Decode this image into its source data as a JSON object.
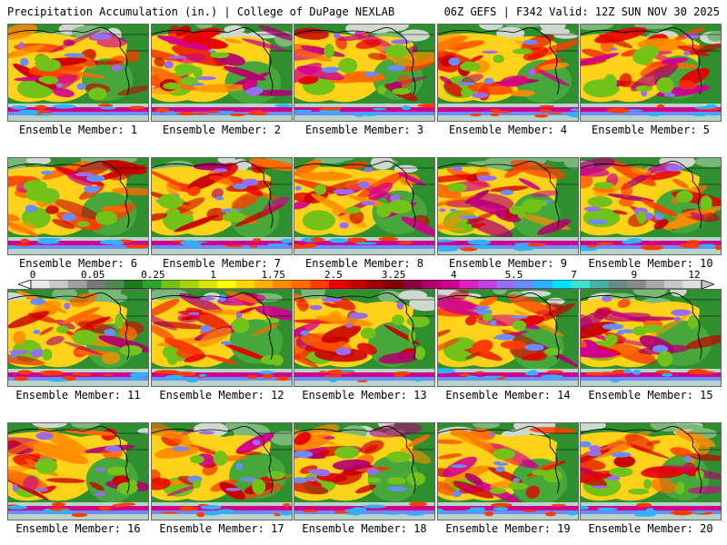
{
  "header": {
    "title": "Precipitation Accumulation (in.) | College of DuPage NEXLAB",
    "run_info": "06Z GEFS | F342 Valid: 12Z SUN NOV 30 2025"
  },
  "members": [
    {
      "label": "Ensemble Member: 1"
    },
    {
      "label": "Ensemble Member: 2"
    },
    {
      "label": "Ensemble Member: 3"
    },
    {
      "label": "Ensemble Member: 4"
    },
    {
      "label": "Ensemble Member: 5"
    },
    {
      "label": "Ensemble Member: 6"
    },
    {
      "label": "Ensemble Member: 7"
    },
    {
      "label": "Ensemble Member: 8"
    },
    {
      "label": "Ensemble Member: 9"
    },
    {
      "label": "Ensemble Member: 10"
    },
    {
      "label": "Ensemble Member: 11"
    },
    {
      "label": "Ensemble Member: 12"
    },
    {
      "label": "Ensemble Member: 13"
    },
    {
      "label": "Ensemble Member: 14"
    },
    {
      "label": "Ensemble Member: 15"
    },
    {
      "label": "Ensemble Member: 16"
    },
    {
      "label": "Ensemble Member: 17"
    },
    {
      "label": "Ensemble Member: 18"
    },
    {
      "label": "Ensemble Member: 19"
    },
    {
      "label": "Ensemble Member: 20"
    }
  ],
  "colorbar": {
    "tick_labels": [
      "0",
      "0.05",
      "0.25",
      "1",
      "1.75",
      "2.5",
      "3.25",
      "4",
      "5.5",
      "7",
      "9",
      "12"
    ],
    "colors": [
      "#e8e8e8",
      "#c8c8c8",
      "#a0a0a0",
      "#787878",
      "#4f8a4f",
      "#1f7a1f",
      "#2ea12e",
      "#72c21a",
      "#a8d40f",
      "#d8e60a",
      "#ffff00",
      "#ffd700",
      "#ffb000",
      "#ff8c00",
      "#ff6a00",
      "#ff3c00",
      "#e60000",
      "#c80000",
      "#a00000",
      "#800000",
      "#8b0040",
      "#b00070",
      "#d0008f",
      "#e020c0",
      "#c040e0",
      "#9a6cf0",
      "#6a8cff",
      "#30b0ff",
      "#00e0ff",
      "#40e0d0",
      "#4ab0a8",
      "#6a8a8a",
      "#8a8a8a",
      "#a8a8a8",
      "#c8c8c8",
      "#e0e0e0"
    ]
  }
}
